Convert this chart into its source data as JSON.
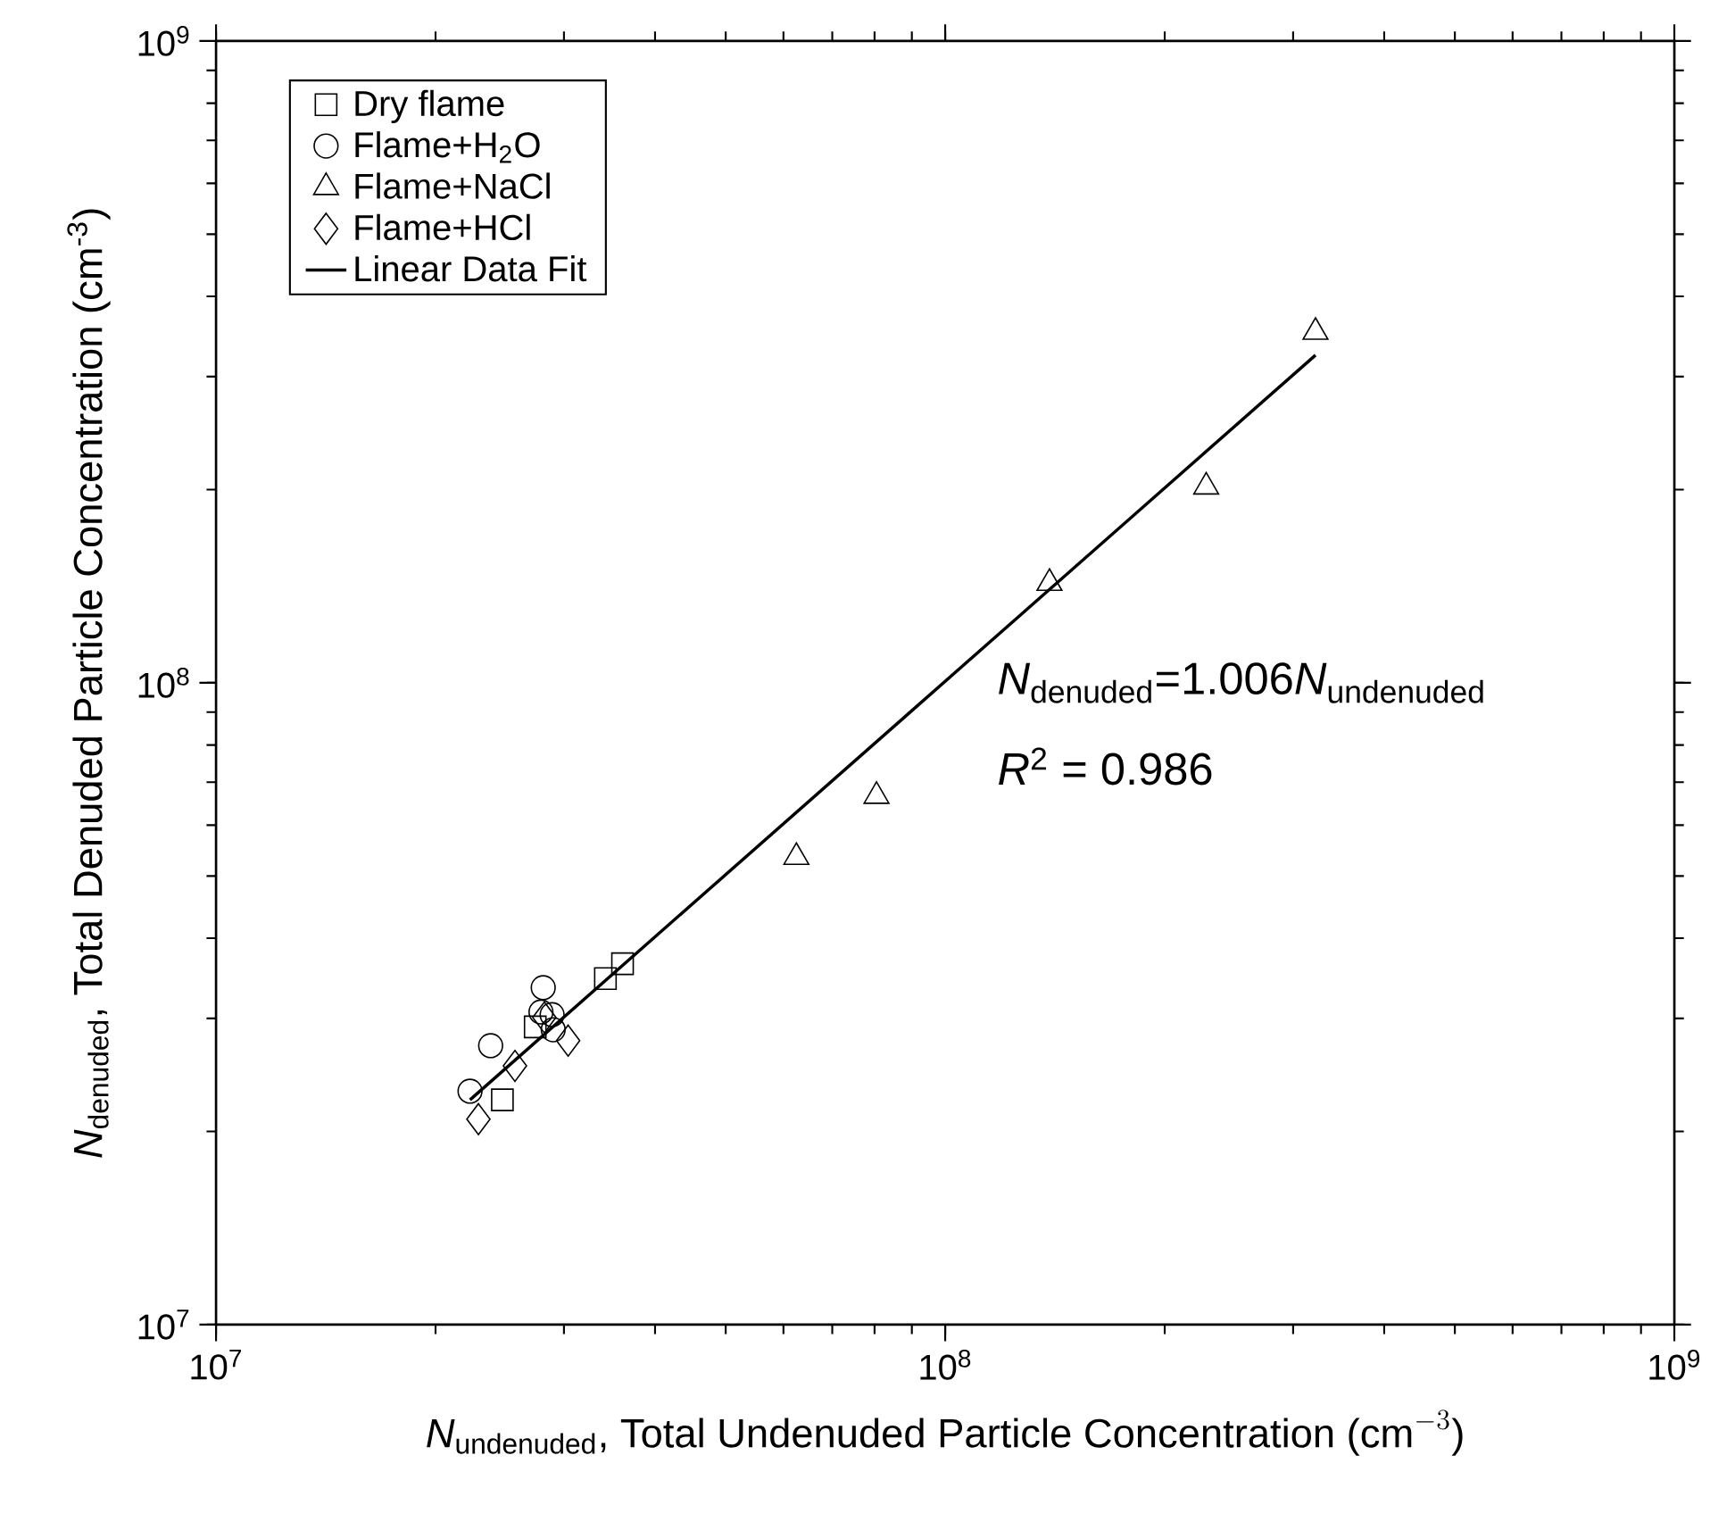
{
  "chart_data": {
    "type": "scatter",
    "log": "xy",
    "xlim": [
      10000000,
      1000000000
    ],
    "ylim": [
      10000000,
      1000000000
    ],
    "xticks": [
      {
        "value": 10000000,
        "label": "10$^{7}$"
      },
      {
        "value": 100000000,
        "label": "10$^{8}$"
      },
      {
        "value": 1000000000,
        "label": "10$^{9}$"
      }
    ],
    "yticks": [
      {
        "value": 10000000,
        "label": "10$^{7}$"
      },
      {
        "value": 100000000,
        "label": "10$^{8}$"
      },
      {
        "value": 1000000000,
        "label": "10$^{9}$"
      }
    ],
    "xlabel": "\\mathit{N}_{\\text{undenuded}}\\text{, Total Undenuded Particle Concentration (cm}^{-3}\\text{)}",
    "ylabel": "*N*$_{denuded}$, Total Denuded Particle Concentration (cm$^{-3}$)",
    "legend": "top left",
    "grid": false,
    "annotations": [
      "\\mathit{N}_{\\text{denuded}}\\text{=1.006}\\mathit{N}_{\\text{undenuded}}",
      "*R*$^{2}$ = 0.986"
    ],
    "series": [
      {
        "name": "Dry flame",
        "color": "#000000",
        "marker": "square",
        "x": [
          36100000,
          34200000,
          27400000,
          24700000
        ],
        "values": [
          36500000,
          34600000,
          29100000,
          22400000
        ]
      },
      {
        "name": "Flame+H$_{2}$O",
        "color": "#000000",
        "marker": "circle",
        "x": [
          28100000,
          27900000,
          28900000,
          29000000,
          23800000,
          22300000
        ],
        "values": [
          33500000,
          30700000,
          30400000,
          28800000,
          27200000,
          23100000
        ]
      },
      {
        "name": "Flame+NaCl",
        "color": "#000000",
        "marker": "triangle",
        "x": [
          322000000,
          228000000,
          139000000,
          80500000,
          62500000
        ],
        "values": [
          352000000,
          202000000,
          143000000,
          66600000,
          53500000
        ]
      },
      {
        "name": "Flame+HCl",
        "color": "#000000",
        "marker": "diamond",
        "x": [
          22900000,
          25700000,
          30400000,
          28200000
        ],
        "values": [
          20900000,
          25300000,
          27700000,
          30100000
        ]
      },
      {
        "name": "Linear Data Fit",
        "type": "line",
        "color": "#000000",
        "marker": "none",
        "line_style": "solid",
        "x": [
          22300000,
          322000000
        ],
        "values": [
          22400000,
          324000000
        ]
      }
    ]
  }
}
